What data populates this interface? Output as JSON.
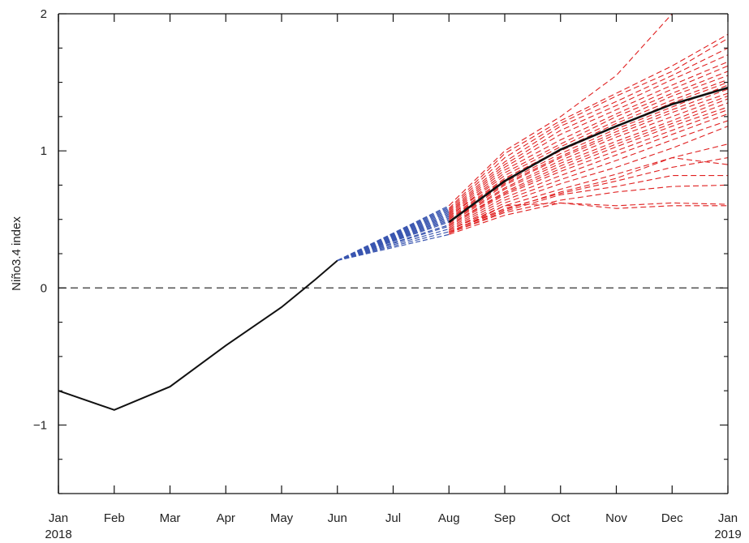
{
  "chart_data": {
    "type": "line",
    "ylabel": "Niño3.4 index",
    "xlabel": "",
    "title": "",
    "ylim": [
      -1.5,
      2
    ],
    "xlim": [
      0,
      12
    ],
    "x_tick_labels": [
      "Jan",
      "Feb",
      "Mar",
      "Apr",
      "May",
      "Jun",
      "Jul",
      "Aug",
      "Sep",
      "Oct",
      "Nov",
      "Dec",
      "Jan"
    ],
    "x_year_labels": [
      {
        "x": 0,
        "label": "2018"
      },
      {
        "x": 12,
        "label": "2019"
      }
    ],
    "y_ticks": [
      -1,
      0,
      1,
      2
    ],
    "y_tick_labels": [
      "−1",
      "0",
      "1",
      "2"
    ],
    "reference_line": {
      "y": 0,
      "style": "dashed",
      "color": "#333333"
    },
    "colors": {
      "observed": "#111111",
      "ensemble_early": "#3a56b0",
      "ensemble_late": "#e02020",
      "ensemble_mean": "#111111",
      "axis": "#111111"
    },
    "series": [
      {
        "role": "observed",
        "style": "solid",
        "points": [
          [
            0,
            -0.75
          ],
          [
            1,
            -0.89
          ],
          [
            2,
            -0.72
          ],
          [
            3,
            -0.42
          ],
          [
            4,
            -0.14
          ],
          [
            4.6,
            0.06
          ],
          [
            5,
            0.2
          ]
        ]
      },
      {
        "role": "ensemble_early",
        "style": "dashed",
        "start": [
          5,
          0.2
        ],
        "end_x": 7,
        "end_values": [
          0.39,
          0.41,
          0.43,
          0.45,
          0.46,
          0.48,
          0.49,
          0.5,
          0.51,
          0.52,
          0.53,
          0.54,
          0.55,
          0.56,
          0.57,
          0.58,
          0.59,
          0.6
        ]
      },
      {
        "role": "ensemble_late",
        "style": "dashed",
        "x": [
          7,
          8,
          9,
          10,
          11,
          12
        ],
        "members": [
          [
            0.6,
            1.0,
            1.25,
            1.55,
            2.0,
            2.6
          ],
          [
            0.58,
            0.98,
            1.22,
            1.42,
            1.62,
            1.85
          ],
          [
            0.57,
            0.95,
            1.2,
            1.4,
            1.58,
            1.82
          ],
          [
            0.56,
            0.92,
            1.18,
            1.36,
            1.55,
            1.75
          ],
          [
            0.55,
            0.9,
            1.15,
            1.33,
            1.52,
            1.7
          ],
          [
            0.54,
            0.88,
            1.12,
            1.3,
            1.48,
            1.65
          ],
          [
            0.53,
            0.86,
            1.08,
            1.27,
            1.45,
            1.62
          ],
          [
            0.52,
            0.84,
            1.05,
            1.25,
            1.42,
            1.58
          ],
          [
            0.52,
            0.82,
            1.03,
            1.22,
            1.4,
            1.55
          ],
          [
            0.51,
            0.8,
            1.01,
            1.2,
            1.37,
            1.52
          ],
          [
            0.5,
            0.79,
            1.0,
            1.18,
            1.35,
            1.5
          ],
          [
            0.5,
            0.77,
            0.98,
            1.16,
            1.32,
            1.48
          ],
          [
            0.49,
            0.76,
            0.96,
            1.14,
            1.3,
            1.45
          ],
          [
            0.48,
            0.75,
            0.95,
            1.12,
            1.28,
            1.42
          ],
          [
            0.48,
            0.73,
            0.93,
            1.1,
            1.25,
            1.4
          ],
          [
            0.47,
            0.72,
            0.91,
            1.07,
            1.22,
            1.38
          ],
          [
            0.46,
            0.7,
            0.89,
            1.05,
            1.2,
            1.35
          ],
          [
            0.46,
            0.69,
            0.87,
            1.03,
            1.18,
            1.32
          ],
          [
            0.45,
            0.68,
            0.85,
            1.0,
            1.15,
            1.3
          ],
          [
            0.44,
            0.66,
            0.82,
            0.97,
            1.12,
            1.27
          ],
          [
            0.43,
            0.64,
            0.79,
            0.93,
            1.08,
            1.22
          ],
          [
            0.42,
            0.62,
            0.76,
            0.88,
            1.02,
            1.18
          ],
          [
            0.42,
            0.6,
            0.72,
            0.83,
            0.95,
            1.05
          ],
          [
            0.41,
            0.58,
            0.69,
            0.78,
            0.88,
            0.95
          ],
          [
            0.41,
            0.57,
            0.7,
            0.8,
            0.95,
            0.9
          ],
          [
            0.4,
            0.56,
            0.68,
            0.74,
            0.82,
            0.82
          ],
          [
            0.4,
            0.55,
            0.64,
            0.7,
            0.74,
            0.75
          ],
          [
            0.4,
            0.6,
            0.62,
            0.6,
            0.62,
            0.61
          ],
          [
            0.39,
            0.53,
            0.62,
            0.58,
            0.6,
            0.6
          ]
        ]
      },
      {
        "role": "ensemble_mean",
        "style": "solid",
        "x": [
          7,
          8,
          9,
          10,
          11,
          12
        ],
        "values": [
          0.48,
          0.78,
          1.01,
          1.18,
          1.34,
          1.46
        ]
      }
    ]
  }
}
